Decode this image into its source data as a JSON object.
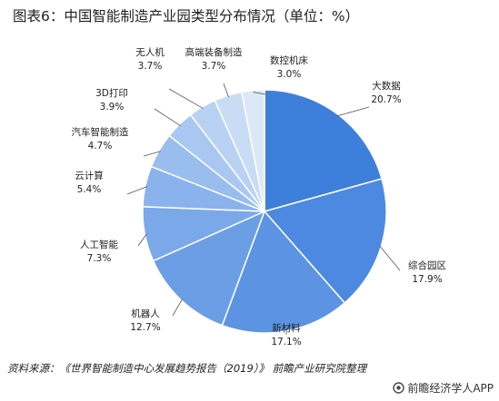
{
  "title": "图表6：中国智能制造产业园类型分布情况（单位：%）",
  "source": "资料来源：《世界智能制造中心发展趋势报告（2019）》 前瞻产业研究院整理",
  "brand": "前瞻经济学人APP",
  "colors": {
    "primary": "#3f7fdc",
    "light": "#dce8f8"
  },
  "chart_data": {
    "type": "pie",
    "title": "图表6：中国智能制造产业园类型分布情况（单位：%）",
    "unit": "%",
    "categories": [
      "大数据",
      "综合园区",
      "新材料",
      "机器人",
      "人工智能",
      "云计算",
      "汽车智能制造",
      "3D打印",
      "无人机",
      "高端装备制造",
      "数控机床"
    ],
    "values": [
      20.7,
      17.9,
      17.1,
      12.7,
      7.3,
      5.4,
      4.7,
      3.9,
      3.7,
      3.7,
      3.0
    ],
    "value_labels": [
      "20.7%",
      "17.9%",
      "17.1%",
      "12.7%",
      "7.3%",
      "5.4%",
      "4.7%",
      "3.9%",
      "3.7%",
      "3.7%",
      "3.0%"
    ],
    "colors": [
      "#3f7fdc",
      "#4d89e0",
      "#5c93e3",
      "#6c9ee6",
      "#7ba8e9",
      "#8ab2ec",
      "#9abdef",
      "#a9c7f1",
      "#b9d2f4",
      "#c8dcf6",
      "#dce8f8"
    ]
  }
}
